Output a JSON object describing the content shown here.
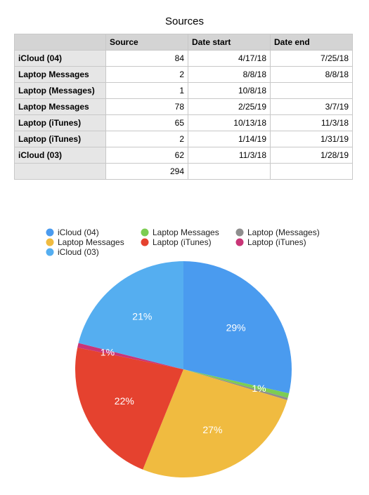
{
  "table": {
    "title": "Sources",
    "headers": [
      "",
      "Source",
      "Date start",
      "Date end"
    ],
    "rows": [
      {
        "name": "iCloud (04)",
        "source": "84",
        "start": "4/17/18",
        "end": "7/25/18"
      },
      {
        "name": "Laptop Messages",
        "source": "2",
        "start": "8/8/18",
        "end": "8/8/18"
      },
      {
        "name": "Laptop (Messages)",
        "source": "1",
        "start": "10/8/18",
        "end": ""
      },
      {
        "name": "Laptop Messages",
        "source": "78",
        "start": "2/25/19",
        "end": "3/7/19"
      },
      {
        "name": "Laptop (iTunes)",
        "source": "65",
        "start": "10/13/18",
        "end": "11/3/18"
      },
      {
        "name": "Laptop (iTunes)",
        "source": "2",
        "start": "1/14/19",
        "end": "1/31/19"
      },
      {
        "name": "iCloud (03)",
        "source": "62",
        "start": "11/3/18",
        "end": "1/28/19"
      }
    ],
    "total": "294"
  },
  "chart_data": {
    "type": "pie",
    "title": "",
    "legend_position": "top",
    "slices": [
      {
        "name": "iCloud (04)",
        "value": 84,
        "label": "29%",
        "color": "#4a9bef"
      },
      {
        "name": "Laptop Messages",
        "value": 2,
        "label": "1%",
        "color": "#7ccd52"
      },
      {
        "name": "Laptop (Messages)",
        "value": 1,
        "label": "",
        "color": "#8e8e8e"
      },
      {
        "name": "Laptop Messages",
        "value": 78,
        "label": "27%",
        "color": "#f0bb40"
      },
      {
        "name": "Laptop (iTunes)",
        "value": 65,
        "label": "22%",
        "color": "#e5422f"
      },
      {
        "name": "Laptop (iTunes)",
        "value": 2,
        "label": "1%",
        "color": "#c93577"
      },
      {
        "name": "iCloud (03)",
        "value": 62,
        "label": "21%",
        "color": "#55aef0"
      }
    ]
  }
}
